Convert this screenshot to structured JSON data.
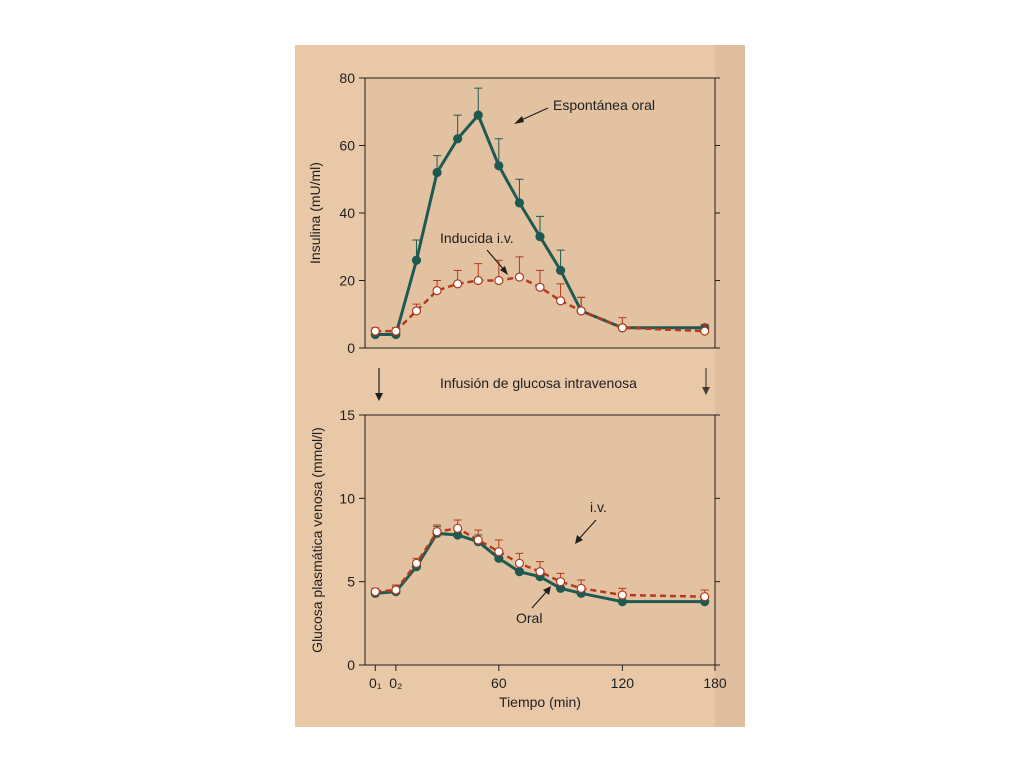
{
  "colors": {
    "page_bg": "#e9c8a8",
    "plot_bg": "#e3c2a1",
    "oral_series": "#1f5a52",
    "iv_series": "#b23a1f",
    "axis": "#1f1f1f"
  },
  "middle_label": "Infusión de glucosa intravenosa",
  "chart_data": [
    {
      "type": "line",
      "ylabel": "Insulina (mU/ml)",
      "xlim": [
        -5,
        165
      ],
      "ylim": [
        0,
        80
      ],
      "yticks": [
        "0",
        "20",
        "40",
        "60",
        "80"
      ],
      "error_bars": true,
      "grid": false,
      "annotations": [
        "Espontánea oral",
        "Inducida i.v."
      ],
      "series": [
        {
          "name": "Espontánea oral",
          "style": "solid, filled markers",
          "x": [
            0,
            10,
            20,
            30,
            40,
            50,
            60,
            70,
            80,
            90,
            100,
            120,
            160
          ],
          "y": [
            4,
            4,
            26,
            52,
            62,
            69,
            54,
            43,
            33,
            23,
            11,
            6,
            6
          ],
          "err": [
            1,
            1,
            6,
            5,
            7,
            8,
            8,
            7,
            6,
            6,
            4,
            0,
            0
          ]
        },
        {
          "name": "Inducida i.v.",
          "style": "dashed, open markers",
          "x": [
            0,
            10,
            20,
            30,
            40,
            50,
            60,
            70,
            80,
            90,
            100,
            120,
            160
          ],
          "y": [
            5,
            5,
            11,
            17,
            19,
            20,
            20,
            21,
            18,
            14,
            11,
            6,
            5
          ],
          "err": [
            1,
            1,
            2,
            3,
            4,
            5,
            6,
            6,
            5,
            5,
            4,
            3,
            2
          ]
        }
      ]
    },
    {
      "type": "line",
      "xlabel": "Tiempo (min)",
      "ylabel": "Glucosa plasmática venosa (mmol/l)",
      "xlim": [
        -5,
        165
      ],
      "ylim": [
        0,
        15
      ],
      "xticks": [
        "0₁",
        "0₂",
        "60",
        "120",
        "180"
      ],
      "yticks": [
        "0",
        "5",
        "10",
        "15"
      ],
      "error_bars": true,
      "grid": false,
      "annotations": [
        "i.v.",
        "Oral"
      ],
      "series": [
        {
          "name": "Oral",
          "style": "solid, filled markers",
          "x": [
            0,
            10,
            20,
            30,
            40,
            50,
            60,
            70,
            80,
            90,
            100,
            120,
            160
          ],
          "y": [
            4.3,
            4.4,
            5.9,
            7.9,
            7.8,
            7.4,
            6.4,
            5.6,
            5.3,
            4.6,
            4.3,
            3.8,
            3.8
          ],
          "err": [
            0.2,
            0.3,
            0.3,
            0.4,
            0.4,
            0.4,
            0.4,
            0.4,
            0.4,
            0.4,
            0.3,
            0.3,
            0.3
          ]
        },
        {
          "name": "i.v.",
          "style": "dashed, open markers",
          "x": [
            0,
            10,
            20,
            30,
            40,
            50,
            60,
            70,
            80,
            90,
            100,
            120,
            160
          ],
          "y": [
            4.4,
            4.5,
            6.1,
            8.0,
            8.2,
            7.5,
            6.8,
            6.1,
            5.6,
            5.0,
            4.6,
            4.2,
            4.1
          ],
          "err": [
            0.2,
            0.3,
            0.3,
            0.4,
            0.5,
            0.6,
            0.7,
            0.6,
            0.6,
            0.5,
            0.5,
            0.4,
            0.4
          ]
        }
      ]
    }
  ]
}
